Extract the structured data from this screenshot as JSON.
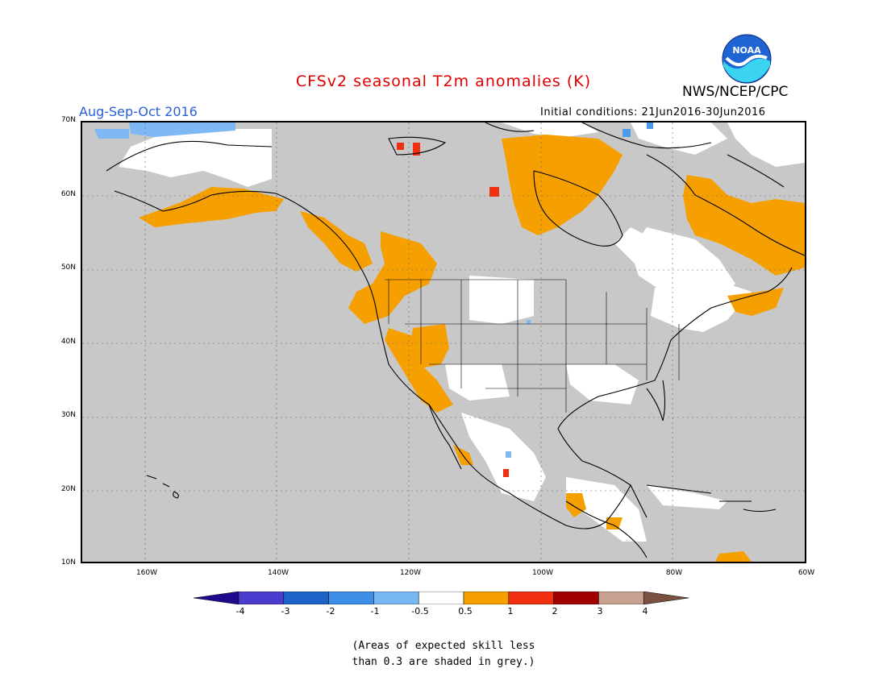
{
  "header": {
    "title": "CFSv2 seasonal T2m anomalies (K)",
    "agency": "NWS/NCEP/CPC",
    "period": "Aug-Sep-Oct 2016",
    "initial_conditions": "Initial conditions: 21Jun2016-30Jun2016",
    "logo_text": "NOAA"
  },
  "map": {
    "lat_labels": [
      "70N",
      "60N",
      "50N",
      "40N",
      "30N",
      "20N",
      "10N"
    ],
    "lon_labels": [
      "160W",
      "140W",
      "120W",
      "100W",
      "80W",
      "60W"
    ],
    "lat_range": [
      10,
      70
    ],
    "lon_range": [
      -170,
      -60
    ],
    "colors": {
      "land_neutral": "#ffffff",
      "low_skill": "#c8c8c8",
      "warm_05_1": "#f5a000",
      "warm_1_2": "#f03010",
      "cool_m05_m1": "#7eb8f5",
      "cool_m1_m2": "#4c9be8"
    }
  },
  "colorbar": {
    "labels": [
      "-4",
      "-3",
      "-2",
      "-1",
      "-0.5",
      "0.5",
      "1",
      "2",
      "3",
      "4"
    ],
    "colors": [
      "#1e0a8c",
      "#4a3ccc",
      "#1f62c8",
      "#3c8ee6",
      "#78b8f2",
      "#ffffff",
      "#f5a000",
      "#f03010",
      "#a00000",
      "#c8a090",
      "#7a5040"
    ]
  },
  "note": {
    "line1": "(Areas of expected skill less",
    "line2": "than 0.3 are shaded in grey.)"
  }
}
